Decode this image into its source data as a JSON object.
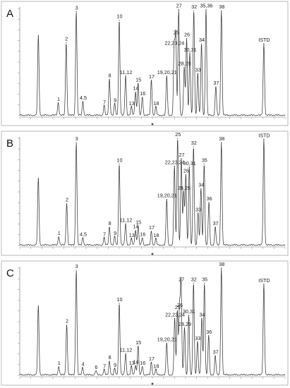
{
  "chart_data": [
    {
      "type": "line",
      "panel": "A",
      "peak_labels": [
        "1",
        "2",
        "3",
        "4,5",
        "7",
        "8",
        "9",
        "10",
        "11,12",
        "13",
        "14",
        "15",
        "16",
        "17",
        "18",
        "19,20,21",
        "22,23,24",
        "25",
        "26",
        "27",
        "28,29",
        "30,31",
        "32",
        "33",
        "34",
        "35,36",
        "37",
        "38",
        "ISTD"
      ],
      "peaks": [
        {
          "label": "",
          "x": 0.07,
          "h": 0.74
        },
        {
          "label": "1",
          "x": 0.145,
          "h": 0.12
        },
        {
          "label": "2",
          "x": 0.175,
          "h": 0.68
        },
        {
          "label": "3",
          "x": 0.213,
          "h": 0.97
        },
        {
          "label": "4,5",
          "x": 0.238,
          "h": 0.13
        },
        {
          "label": "7",
          "x": 0.318,
          "h": 0.09
        },
        {
          "label": "8",
          "x": 0.338,
          "h": 0.34
        },
        {
          "label": "9",
          "x": 0.358,
          "h": 0.11
        },
        {
          "label": "10",
          "x": 0.375,
          "h": 0.89
        },
        {
          "label": "11,12",
          "x": 0.399,
          "h": 0.37
        },
        {
          "label": "13",
          "x": 0.421,
          "h": 0.08
        },
        {
          "label": "14",
          "x": 0.436,
          "h": 0.22
        },
        {
          "label": "15",
          "x": 0.446,
          "h": 0.3
        },
        {
          "label": "16",
          "x": 0.462,
          "h": 0.17
        },
        {
          "label": "17",
          "x": 0.496,
          "h": 0.33
        },
        {
          "label": "18",
          "x": 0.513,
          "h": 0.08
        },
        {
          "label": "19,20,21",
          "x": 0.554,
          "h": 0.37
        },
        {
          "label": "22,23,24",
          "x": 0.582,
          "h": 0.64
        },
        {
          "label": "25",
          "x": 0.588,
          "h": 0.74
        },
        {
          "label": "26",
          "x": 0.629,
          "h": 0.72
        },
        {
          "label": "27",
          "x": 0.599,
          "h": 0.99
        },
        {
          "label": "28,29",
          "x": 0.62,
          "h": 0.45
        },
        {
          "label": "30,31",
          "x": 0.641,
          "h": 0.58
        },
        {
          "label": "32",
          "x": 0.656,
          "h": 0.98
        },
        {
          "label": "33",
          "x": 0.671,
          "h": 0.39
        },
        {
          "label": "34",
          "x": 0.685,
          "h": 0.67
        },
        {
          "label": "35,36",
          "x": 0.702,
          "h": 0.99
        },
        {
          "label": "37",
          "x": 0.739,
          "h": 0.27
        },
        {
          "label": "38",
          "x": 0.76,
          "h": 0.98
        },
        {
          "label": "ISTD",
          "x": 0.92,
          "h": 0.67
        }
      ]
    },
    {
      "type": "line",
      "panel": "B",
      "peak_labels": [
        "1",
        "2",
        "3",
        "4,5",
        "7",
        "8",
        "9",
        "10",
        "11,12",
        "13",
        "14",
        "15",
        "16",
        "17",
        "18",
        "19,20,21",
        "22,23,24",
        "25",
        "26",
        "27",
        "28,29",
        "30,31",
        "32",
        "33",
        "34",
        "35",
        "36",
        "37",
        "38",
        "ISTD"
      ],
      "peaks": [
        {
          "label": "",
          "x": 0.07,
          "h": 0.62
        },
        {
          "label": "1",
          "x": 0.147,
          "h": 0.08
        },
        {
          "label": "2",
          "x": 0.177,
          "h": 0.39
        },
        {
          "label": "3",
          "x": 0.213,
          "h": 0.96
        },
        {
          "label": "4,5",
          "x": 0.238,
          "h": 0.07
        },
        {
          "label": "7",
          "x": 0.318,
          "h": 0.07
        },
        {
          "label": "8",
          "x": 0.338,
          "h": 0.17
        },
        {
          "label": "9",
          "x": 0.358,
          "h": 0.08
        },
        {
          "label": "10",
          "x": 0.375,
          "h": 0.76
        },
        {
          "label": "11,12",
          "x": 0.399,
          "h": 0.2
        },
        {
          "label": "13",
          "x": 0.421,
          "h": 0.06
        },
        {
          "label": "14",
          "x": 0.436,
          "h": 0.14
        },
        {
          "label": "15",
          "x": 0.446,
          "h": 0.18
        },
        {
          "label": "16",
          "x": 0.462,
          "h": 0.07
        },
        {
          "label": "17",
          "x": 0.496,
          "h": 0.13
        },
        {
          "label": "18",
          "x": 0.513,
          "h": 0.06
        },
        {
          "label": "19,20,21",
          "x": 0.554,
          "h": 0.43
        },
        {
          "label": "22,23,24",
          "x": 0.583,
          "h": 0.74
        },
        {
          "label": "25",
          "x": 0.595,
          "h": 1.0
        },
        {
          "label": "26",
          "x": 0.626,
          "h": 0.66
        },
        {
          "label": "27",
          "x": 0.609,
          "h": 0.81
        },
        {
          "label": "28,29",
          "x": 0.618,
          "h": 0.5
        },
        {
          "label": "30,31",
          "x": 0.639,
          "h": 0.73
        },
        {
          "label": "32",
          "x": 0.655,
          "h": 0.92
        },
        {
          "label": "33",
          "x": 0.672,
          "h": 0.3
        },
        {
          "label": "34",
          "x": 0.683,
          "h": 0.53
        },
        {
          "label": "35",
          "x": 0.695,
          "h": 0.76
        },
        {
          "label": "36",
          "x": 0.713,
          "h": 0.4
        },
        {
          "label": "37",
          "x": 0.737,
          "h": 0.17
        },
        {
          "label": "38",
          "x": 0.76,
          "h": 0.96
        },
        {
          "label": "ISTD",
          "x": 0.92,
          "h": 0.99
        }
      ]
    },
    {
      "type": "line",
      "panel": "C",
      "peak_labels": [
        "1",
        "2",
        "3",
        "4",
        "6",
        "7",
        "8",
        "9",
        "10",
        "11,12",
        "13",
        "14",
        "15",
        "16",
        "17",
        "18",
        "19,20,21",
        "22,23,24",
        "25",
        "26",
        "27",
        "28,29",
        "30,31",
        "32",
        "33",
        "34",
        "35",
        "36",
        "37",
        "38",
        "ISTD"
      ],
      "peaks": [
        {
          "label": "",
          "x": 0.07,
          "h": 0.64
        },
        {
          "label": "1",
          "x": 0.147,
          "h": 0.08
        },
        {
          "label": "2",
          "x": 0.177,
          "h": 0.47
        },
        {
          "label": "3",
          "x": 0.213,
          "h": 0.98
        },
        {
          "label": "4",
          "x": 0.237,
          "h": 0.07
        },
        {
          "label": "6",
          "x": 0.287,
          "h": 0.04
        },
        {
          "label": "7",
          "x": 0.318,
          "h": 0.05
        },
        {
          "label": "8",
          "x": 0.338,
          "h": 0.13
        },
        {
          "label": "9",
          "x": 0.358,
          "h": 0.06
        },
        {
          "label": "10",
          "x": 0.375,
          "h": 0.67
        },
        {
          "label": "11,12",
          "x": 0.399,
          "h": 0.2
        },
        {
          "label": "13",
          "x": 0.421,
          "h": 0.08
        },
        {
          "label": "14",
          "x": 0.436,
          "h": 0.09
        },
        {
          "label": "15",
          "x": 0.446,
          "h": 0.27
        },
        {
          "label": "16",
          "x": 0.462,
          "h": 0.08
        },
        {
          "label": "17",
          "x": 0.496,
          "h": 0.12
        },
        {
          "label": "18",
          "x": 0.513,
          "h": 0.05
        },
        {
          "label": "19,20,21",
          "x": 0.554,
          "h": 0.3
        },
        {
          "label": "22,23,24",
          "x": 0.584,
          "h": 0.53
        },
        {
          "label": "25",
          "x": 0.594,
          "h": 0.6
        },
        {
          "label": "26",
          "x": 0.602,
          "h": 0.62
        },
        {
          "label": "27",
          "x": 0.608,
          "h": 0.86
        },
        {
          "label": "28,29",
          "x": 0.621,
          "h": 0.44
        },
        {
          "label": "30,31",
          "x": 0.637,
          "h": 0.56
        },
        {
          "label": "32",
          "x": 0.655,
          "h": 0.86
        },
        {
          "label": "33",
          "x": 0.67,
          "h": 0.31
        },
        {
          "label": "34",
          "x": 0.686,
          "h": 0.53
        },
        {
          "label": "35",
          "x": 0.696,
          "h": 0.86
        },
        {
          "label": "36",
          "x": 0.712,
          "h": 0.37
        },
        {
          "label": "37",
          "x": 0.737,
          "h": 0.18
        },
        {
          "label": "38",
          "x": 0.76,
          "h": 1.0
        },
        {
          "label": "ISTD",
          "x": 0.92,
          "h": 0.85
        }
      ]
    }
  ]
}
